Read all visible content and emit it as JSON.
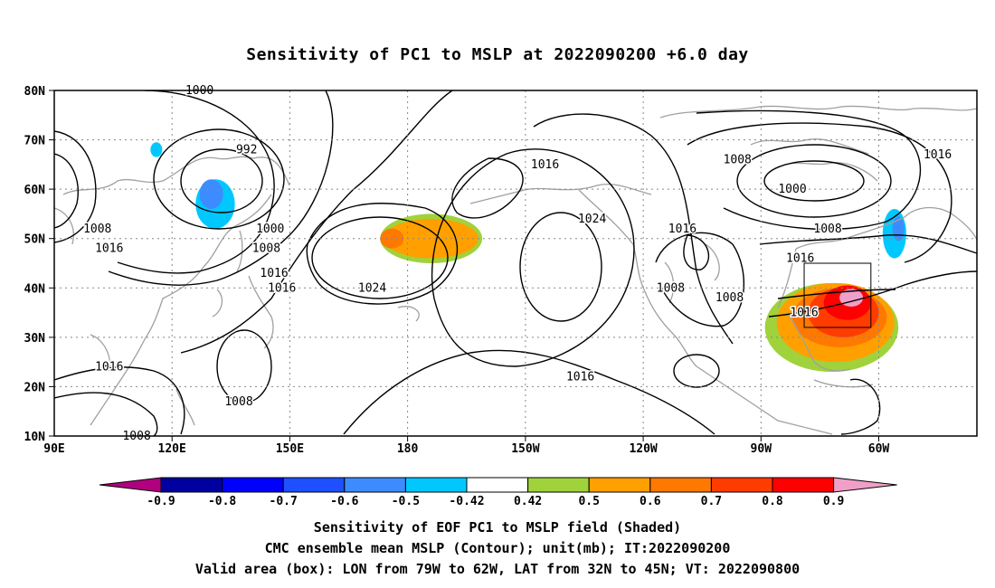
{
  "title": "Sensitivity of PC1 to MSLP at 2022090200 +6.0 day",
  "map": {
    "lon_labels": [
      "90E",
      "120E",
      "150E",
      "180",
      "150W",
      "120W",
      "90W",
      "60W"
    ],
    "lat_labels": [
      "80N",
      "70N",
      "60N",
      "50N",
      "40N",
      "30N",
      "20N",
      "10N"
    ],
    "lon_range": [
      90,
      325
    ],
    "lat_range": [
      10,
      80
    ],
    "gridlines": "dotted",
    "box": {
      "lon": [
        281,
        298
      ],
      "lat": [
        32,
        45
      ]
    },
    "contour_labels": [
      {
        "text": "1000",
        "lon": 127,
        "lat": 80
      },
      {
        "text": "992",
        "lon": 139,
        "lat": 68
      },
      {
        "text": "1016",
        "lon": 215,
        "lat": 65
      },
      {
        "text": "1008",
        "lon": 264,
        "lat": 66
      },
      {
        "text": "1016",
        "lon": 315,
        "lat": 67
      },
      {
        "text": "1000",
        "lon": 278,
        "lat": 60
      },
      {
        "text": "1008",
        "lon": 287,
        "lat": 52
      },
      {
        "text": "1024",
        "lon": 227,
        "lat": 54
      },
      {
        "text": "1016",
        "lon": 250,
        "lat": 52
      },
      {
        "text": "1008",
        "lon": 101,
        "lat": 52
      },
      {
        "text": "1016",
        "lon": 104,
        "lat": 48
      },
      {
        "text": "1000",
        "lon": 145,
        "lat": 52
      },
      {
        "text": "1008",
        "lon": 144,
        "lat": 48
      },
      {
        "text": "1016",
        "lon": 146,
        "lat": 43
      },
      {
        "text": "1016",
        "lon": 148,
        "lat": 40
      },
      {
        "text": "1024",
        "lon": 171,
        "lat": 40
      },
      {
        "text": "1016",
        "lon": 280,
        "lat": 46
      },
      {
        "text": "1008",
        "lon": 247,
        "lat": 40
      },
      {
        "text": "1008",
        "lon": 262,
        "lat": 38
      },
      {
        "text": "1016",
        "lon": 281,
        "lat": 35
      },
      {
        "text": "1016",
        "lon": 104,
        "lat": 24
      },
      {
        "text": "1008",
        "lon": 137,
        "lat": 17
      },
      {
        "text": "1016",
        "lon": 224,
        "lat": 22
      },
      {
        "text": "1008",
        "lon": 111,
        "lat": 10
      }
    ],
    "shaded_regions": [
      {
        "level": -0.5,
        "lon": 131,
        "lat": 57,
        "rx": 5,
        "ry": 5
      },
      {
        "level": -0.6,
        "lon": 130,
        "lat": 59,
        "rx": 3,
        "ry": 3
      },
      {
        "level": -0.5,
        "lon": 116,
        "lat": 68,
        "rx": 1.5,
        "ry": 1.5
      },
      {
        "level": -0.5,
        "lon": 304,
        "lat": 51,
        "rx": 3,
        "ry": 5
      },
      {
        "level": -0.6,
        "lon": 305,
        "lat": 52,
        "rx": 1.5,
        "ry": 2.5
      },
      {
        "level": 0.42,
        "lon": 186,
        "lat": 50,
        "rx": 13,
        "ry": 5
      },
      {
        "level": 0.5,
        "lon": 186,
        "lat": 50,
        "rx": 12,
        "ry": 4
      },
      {
        "level": 0.6,
        "lon": 176,
        "lat": 50,
        "rx": 3,
        "ry": 2
      },
      {
        "level": 0.42,
        "lon": 288,
        "lat": 32,
        "rx": 17,
        "ry": 9
      },
      {
        "level": 0.5,
        "lon": 289,
        "lat": 33,
        "rx": 15,
        "ry": 8
      },
      {
        "level": 0.6,
        "lon": 290,
        "lat": 34,
        "rx": 12,
        "ry": 6
      },
      {
        "level": 0.7,
        "lon": 291,
        "lat": 35,
        "rx": 9,
        "ry": 5
      },
      {
        "level": 0.8,
        "lon": 292,
        "lat": 37,
        "rx": 6,
        "ry": 3.5
      },
      {
        "level": 0.9,
        "lon": 293,
        "lat": 38,
        "rx": 3,
        "ry": 1.8
      }
    ]
  },
  "colorbar": {
    "labels": [
      "-0.9",
      "-0.8",
      "-0.7",
      "-0.6",
      "-0.5",
      "-0.42",
      "0.42",
      "0.5",
      "0.6",
      "0.7",
      "0.8",
      "0.9"
    ],
    "colors": {
      "below_-0.9": "#b0007e",
      "-0.9_-0.8": "#0000a0",
      "-0.8_-0.7": "#0000ff",
      "-0.7_-0.6": "#1e50ff",
      "-0.6_-0.5": "#3c8cff",
      "-0.5_-0.42": "#00c8ff",
      "-0.42_0.42": "#ffffff",
      "0.42_0.5": "#a0d23c",
      "0.5_0.6": "#ffa000",
      "0.6_0.7": "#ff7800",
      "0.7_0.8": "#ff3c00",
      "0.8_0.9": "#ff0000",
      "above_0.9": "#f0a0c8"
    }
  },
  "captions": {
    "line1": "Sensitivity of EOF PC1 to MSLP field (Shaded)",
    "line2": "CMC ensemble mean MSLP (Contour); unit(mb); IT:2022090200",
    "line3": "Valid area (box): LON from 79W to 62W, LAT from 32N to 45N; VT: 2022090800"
  }
}
